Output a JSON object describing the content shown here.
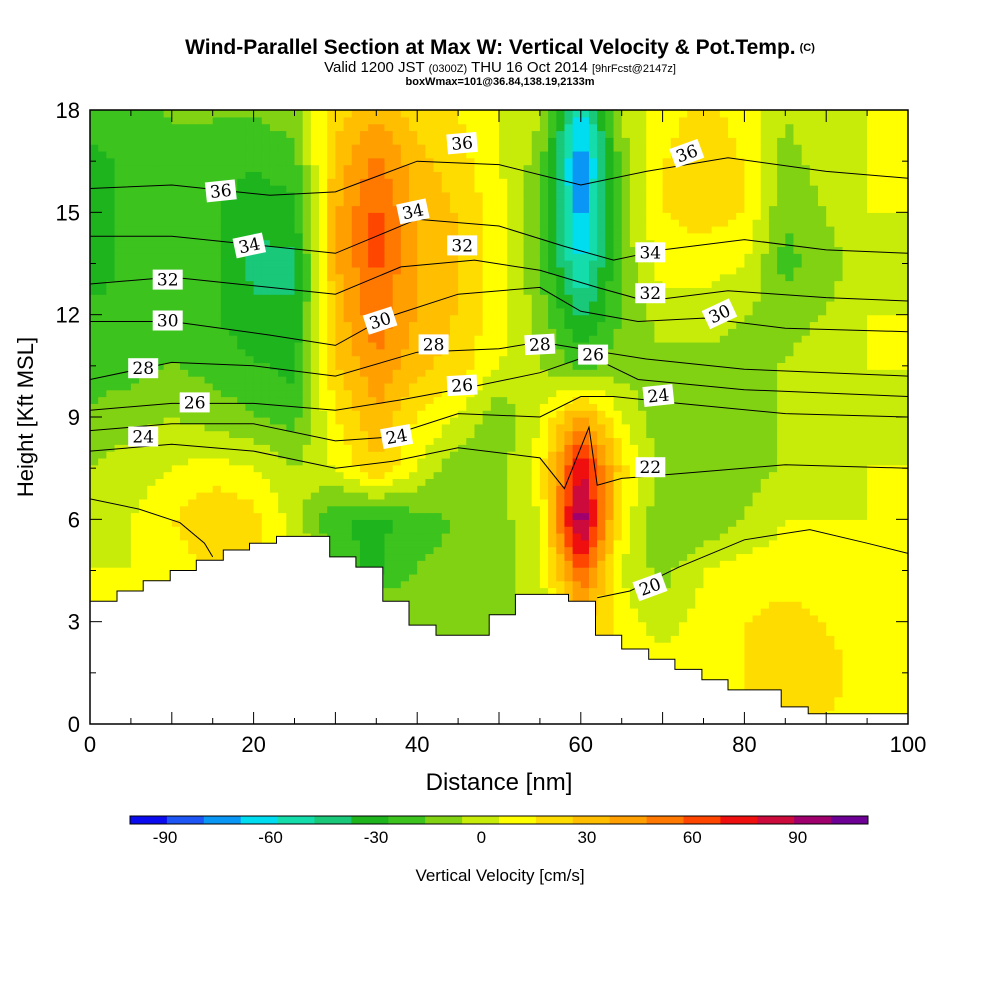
{
  "header": {
    "title": "Wind-Parallel Section at Max W: Vertical Velocity & Pot.Temp.",
    "copyright": "(C)",
    "valid_main": "Valid 1200 JST",
    "valid_utc": "(0300Z)",
    "valid_date": "THU 16 Oct 2014",
    "valid_fcst": "[9hrFcst@2147z]",
    "box_info": "boxWmax=101@36.84,138.19,2133m"
  },
  "chart_data": {
    "type": "heatmap",
    "xlabel": "Distance [nm]",
    "ylabel": "Height [Kft MSL]",
    "xlim": [
      0,
      100
    ],
    "ylim": [
      0,
      18
    ],
    "x_ticks": [
      "0",
      "20",
      "40",
      "60",
      "80",
      "100"
    ],
    "y_ticks": [
      "0",
      "3",
      "6",
      "9",
      "12",
      "15",
      "18"
    ],
    "colorbar": {
      "label": "Vertical Velocity [cm/s]",
      "tick_labels": [
        "-90",
        "-60",
        "-30",
        "0",
        "30",
        "60",
        "90"
      ],
      "tick_values": [
        -90,
        -60,
        -30,
        0,
        30,
        60,
        90
      ],
      "range": [
        -100,
        110
      ],
      "colors": [
        "#0b0bf0",
        "#1e55f5",
        "#0a96f5",
        "#00dcf0",
        "#14dcaa",
        "#19c878",
        "#1eb41e",
        "#3cc31e",
        "#82d214",
        "#c8ec0a",
        "#ffff00",
        "#ffdc00",
        "#ffbe00",
        "#ffa000",
        "#ff7800",
        "#ff4600",
        "#f00f0f",
        "#cd0a3c",
        "#a0006e",
        "#6e0096"
      ]
    },
    "terrain_kft": [
      [
        0,
        3.6
      ],
      [
        3.3,
        3.9
      ],
      [
        6.5,
        4.2
      ],
      [
        9.8,
        4.5
      ],
      [
        13,
        4.8
      ],
      [
        16.3,
        5.1
      ],
      [
        19.5,
        5.3
      ],
      [
        22.8,
        5.5
      ],
      [
        29.3,
        4.9
      ],
      [
        32.5,
        4.6
      ],
      [
        35.8,
        3.6
      ],
      [
        39,
        2.9
      ],
      [
        42.3,
        2.6
      ],
      [
        48.8,
        3.2
      ],
      [
        52,
        3.8
      ],
      [
        58.5,
        3.6
      ],
      [
        61.8,
        2.6
      ],
      [
        65,
        2.2
      ],
      [
        68.3,
        1.9
      ],
      [
        71.5,
        1.6
      ],
      [
        74.8,
        1.3
      ],
      [
        78,
        1.0
      ],
      [
        84.5,
        0.5
      ],
      [
        87.8,
        0.3
      ],
      [
        91,
        0.3
      ],
      [
        94.3,
        0.3
      ],
      [
        97.5,
        0.3
      ],
      [
        100,
        0.3
      ]
    ],
    "w_field": {
      "x": [
        0,
        5,
        10,
        15,
        20,
        25,
        30,
        35,
        40,
        45,
        50,
        55,
        60,
        65,
        70,
        75,
        80,
        85,
        90,
        95,
        100
      ],
      "z": [
        0,
        1.5,
        3,
        4.5,
        6,
        7.5,
        9,
        10.5,
        12,
        13.5,
        15,
        16.5,
        18
      ],
      "values_cm_s": [
        [
          5,
          5,
          5,
          5,
          5,
          5,
          5,
          5,
          5,
          5,
          5,
          5,
          10,
          10,
          10,
          15,
          15,
          20,
          15,
          10,
          5
        ],
        [
          5,
          5,
          5,
          5,
          5,
          5,
          5,
          5,
          5,
          5,
          5,
          5,
          20,
          15,
          10,
          15,
          15,
          25,
          20,
          10,
          5
        ],
        [
          5,
          5,
          5,
          5,
          5,
          5,
          5,
          5,
          -10,
          -15,
          -10,
          0,
          30,
          10,
          0,
          10,
          15,
          20,
          15,
          10,
          5
        ],
        [
          5,
          5,
          10,
          15,
          15,
          10,
          -20,
          -30,
          -15,
          -15,
          -10,
          0,
          60,
          5,
          -10,
          5,
          10,
          10,
          10,
          10,
          5
        ],
        [
          0,
          5,
          15,
          25,
          20,
          0,
          -25,
          -30,
          -20,
          -15,
          -10,
          5,
          100,
          10,
          -15,
          -15,
          -5,
          5,
          5,
          5,
          5
        ],
        [
          -5,
          0,
          5,
          10,
          5,
          -5,
          5,
          25,
          5,
          -15,
          -10,
          10,
          80,
          20,
          -10,
          -15,
          -10,
          -5,
          0,
          5,
          5
        ],
        [
          -15,
          -10,
          -5,
          -10,
          -15,
          -20,
          15,
          35,
          15,
          5,
          -15,
          5,
          40,
          5,
          -15,
          -15,
          -10,
          -5,
          0,
          0,
          5
        ],
        [
          -20,
          -20,
          -15,
          -20,
          -25,
          -30,
          25,
          45,
          30,
          20,
          5,
          -5,
          -20,
          -10,
          -10,
          -10,
          -10,
          -5,
          0,
          5,
          5
        ],
        [
          -25,
          -25,
          -20,
          -25,
          -35,
          -35,
          30,
          55,
          35,
          25,
          10,
          -10,
          -40,
          -15,
          0,
          0,
          -5,
          -10,
          -5,
          5,
          5
        ],
        [
          -30,
          -25,
          -20,
          -25,
          -40,
          -40,
          35,
          60,
          35,
          25,
          10,
          -15,
          -60,
          -15,
          10,
          10,
          5,
          -20,
          -10,
          0,
          5
        ],
        [
          -30,
          -25,
          -20,
          -25,
          -35,
          -30,
          35,
          60,
          35,
          25,
          10,
          -15,
          -75,
          -10,
          15,
          20,
          15,
          -15,
          -5,
          5,
          5
        ],
        [
          -30,
          -25,
          -20,
          -20,
          -25,
          -20,
          30,
          50,
          30,
          20,
          5,
          -10,
          -80,
          -10,
          15,
          25,
          15,
          -10,
          0,
          5,
          5
        ],
        [
          -20,
          -20,
          -15,
          -15,
          -15,
          -10,
          20,
          35,
          20,
          15,
          5,
          -5,
          -60,
          -5,
          10,
          20,
          10,
          -5,
          5,
          5,
          5
        ]
      ]
    },
    "theta_contours_c": [
      {
        "value": 20,
        "points": [
          [
            0,
            6.6
          ],
          [
            6,
            6.3
          ],
          [
            11,
            5.9
          ],
          [
            14,
            5.3
          ],
          [
            15,
            4.9
          ]
        ]
      },
      {
        "value": 20,
        "points": [
          [
            62,
            3.7
          ],
          [
            66,
            3.9
          ],
          [
            72,
            4.6
          ],
          [
            80,
            5.4
          ],
          [
            88,
            5.7
          ],
          [
            95,
            5.3
          ],
          [
            100,
            5.0
          ]
        ]
      },
      {
        "value": 22,
        "points": [
          [
            0,
            8.0
          ],
          [
            10,
            8.2
          ],
          [
            20,
            8.0
          ],
          [
            30,
            7.5
          ],
          [
            37,
            7.7
          ],
          [
            45,
            8.1
          ],
          [
            55,
            7.8
          ],
          [
            58,
            6.9
          ],
          [
            61,
            8.7
          ],
          [
            62,
            7.0
          ],
          [
            65,
            7.2
          ],
          [
            75,
            7.4
          ],
          [
            85,
            7.6
          ],
          [
            100,
            7.5
          ]
        ]
      },
      {
        "value": 24,
        "points": [
          [
            0,
            8.6
          ],
          [
            10,
            8.8
          ],
          [
            20,
            8.8
          ],
          [
            30,
            8.3
          ],
          [
            36,
            8.4
          ],
          [
            45,
            9.1
          ],
          [
            55,
            9.0
          ],
          [
            60,
            9.6
          ],
          [
            64,
            9.6
          ],
          [
            72,
            9.4
          ],
          [
            85,
            9.1
          ],
          [
            100,
            9.0
          ]
        ]
      },
      {
        "value": 26,
        "points": [
          [
            0,
            9.2
          ],
          [
            10,
            9.4
          ],
          [
            20,
            9.4
          ],
          [
            30,
            9.2
          ],
          [
            38,
            9.5
          ],
          [
            47,
            9.9
          ],
          [
            55,
            10.3
          ],
          [
            61,
            10.8
          ],
          [
            67,
            10.1
          ],
          [
            80,
            9.8
          ],
          [
            100,
            9.6
          ]
        ]
      },
      {
        "value": 28,
        "points": [
          [
            0,
            10.1
          ],
          [
            10,
            10.6
          ],
          [
            20,
            10.5
          ],
          [
            30,
            10.2
          ],
          [
            40,
            10.9
          ],
          [
            50,
            11.0
          ],
          [
            55,
            11.2
          ],
          [
            60,
            11.0
          ],
          [
            68,
            10.7
          ],
          [
            80,
            10.4
          ],
          [
            100,
            10.2
          ]
        ]
      },
      {
        "value": 30,
        "points": [
          [
            0,
            11.8
          ],
          [
            10,
            11.8
          ],
          [
            22,
            11.4
          ],
          [
            30,
            11.1
          ],
          [
            36,
            11.9
          ],
          [
            45,
            12.6
          ],
          [
            55,
            12.8
          ],
          [
            60,
            12.1
          ],
          [
            67,
            11.8
          ],
          [
            75,
            11.9
          ],
          [
            85,
            11.6
          ],
          [
            100,
            11.5
          ]
        ]
      },
      {
        "value": 32,
        "points": [
          [
            0,
            12.9
          ],
          [
            10,
            13.1
          ],
          [
            22,
            12.8
          ],
          [
            30,
            12.6
          ],
          [
            38,
            13.4
          ],
          [
            47,
            13.6
          ],
          [
            55,
            13.3
          ],
          [
            62,
            12.8
          ],
          [
            68,
            12.4
          ],
          [
            78,
            12.7
          ],
          [
            90,
            12.5
          ],
          [
            100,
            12.4
          ]
        ]
      },
      {
        "value": 34,
        "points": [
          [
            0,
            14.3
          ],
          [
            10,
            14.3
          ],
          [
            22,
            14.0
          ],
          [
            30,
            13.8
          ],
          [
            40,
            14.8
          ],
          [
            50,
            14.6
          ],
          [
            58,
            14.0
          ],
          [
            64,
            13.6
          ],
          [
            70,
            13.9
          ],
          [
            80,
            14.2
          ],
          [
            90,
            13.9
          ],
          [
            100,
            13.8
          ]
        ]
      },
      {
        "value": 36,
        "points": [
          [
            0,
            15.7
          ],
          [
            10,
            15.8
          ],
          [
            22,
            15.5
          ],
          [
            30,
            15.6
          ],
          [
            40,
            16.5
          ],
          [
            50,
            16.4
          ],
          [
            60,
            15.8
          ],
          [
            68,
            16.2
          ],
          [
            78,
            16.6
          ],
          [
            90,
            16.2
          ],
          [
            100,
            16.0
          ]
        ]
      }
    ],
    "contour_labels": [
      {
        "text": "36",
        "x": 16,
        "z": 15.6,
        "rot": -6
      },
      {
        "text": "34",
        "x": 19.5,
        "z": 14.0,
        "rot": -12
      },
      {
        "text": "32",
        "x": 9.5,
        "z": 13.0,
        "rot": 0
      },
      {
        "text": "30",
        "x": 9.5,
        "z": 11.8,
        "rot": 0
      },
      {
        "text": "28",
        "x": 6.5,
        "z": 10.4,
        "rot": 0
      },
      {
        "text": "26",
        "x": 12.8,
        "z": 9.4,
        "rot": 0
      },
      {
        "text": "24",
        "x": 6.5,
        "z": 8.4,
        "rot": 0
      },
      {
        "text": "36",
        "x": 45.5,
        "z": 17.0,
        "rot": -5
      },
      {
        "text": "34",
        "x": 39.5,
        "z": 15.0,
        "rot": -12
      },
      {
        "text": "32",
        "x": 45.5,
        "z": 14.0,
        "rot": 0
      },
      {
        "text": "30",
        "x": 35.5,
        "z": 11.8,
        "rot": -18
      },
      {
        "text": "28",
        "x": 42,
        "z": 11.1,
        "rot": 0
      },
      {
        "text": "26",
        "x": 45.5,
        "z": 9.9,
        "rot": -3
      },
      {
        "text": "24",
        "x": 37.5,
        "z": 8.4,
        "rot": -10
      },
      {
        "text": "28",
        "x": 55,
        "z": 11.1,
        "rot": -3
      },
      {
        "text": "26",
        "x": 61.5,
        "z": 10.8,
        "rot": 0
      },
      {
        "text": "34",
        "x": 68.5,
        "z": 13.8,
        "rot": 0
      },
      {
        "text": "32",
        "x": 68.5,
        "z": 12.6,
        "rot": 0
      },
      {
        "text": "36",
        "x": 73,
        "z": 16.7,
        "rot": -20
      },
      {
        "text": "30",
        "x": 77,
        "z": 12.0,
        "rot": -25
      },
      {
        "text": "24",
        "x": 69.5,
        "z": 9.6,
        "rot": -6
      },
      {
        "text": "22",
        "x": 68.5,
        "z": 7.5,
        "rot": 0
      },
      {
        "text": "20",
        "x": 68.5,
        "z": 4.0,
        "rot": -20
      }
    ]
  }
}
